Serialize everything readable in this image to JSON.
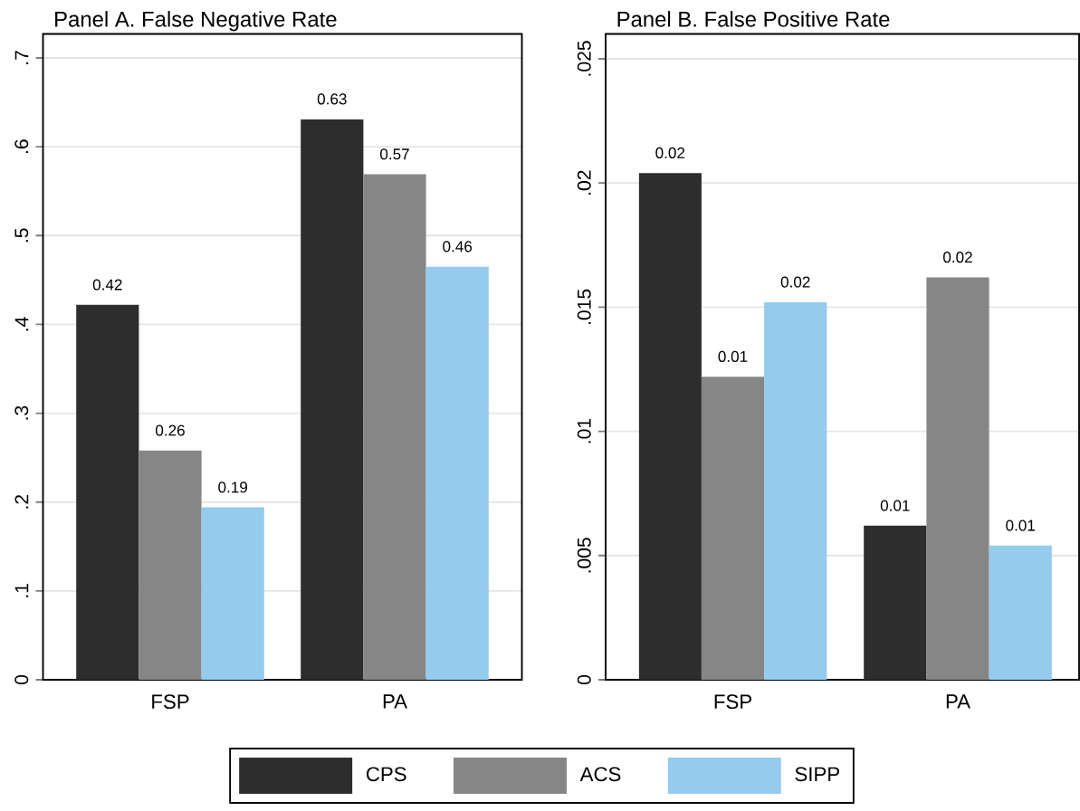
{
  "chart_data": [
    {
      "type": "bar",
      "title": "Panel A. False Negative Rate",
      "categories": [
        "FSP",
        "PA"
      ],
      "ylim": [
        0,
        0.727
      ],
      "yticks": [
        0,
        {
          "value": 0.1,
          "label": ".1"
        },
        {
          "value": 0.2,
          "label": ".2"
        },
        {
          "value": 0.3,
          "label": ".3"
        },
        {
          "value": 0.4,
          "label": ".4"
        },
        {
          "value": 0.5,
          "label": ".5"
        },
        {
          "value": 0.6,
          "label": ".6"
        },
        {
          "value": 0.7,
          "label": ".7"
        }
      ],
      "grid": "y",
      "legend": "bottom",
      "series": [
        {
          "name": "CPS",
          "color": "#2d2d2d",
          "values": [
            0.422,
            0.631
          ],
          "value_labels": [
            "0.42",
            "0.63"
          ]
        },
        {
          "name": "ACS",
          "color": "#868686",
          "values": [
            0.258,
            0.569
          ],
          "value_labels": [
            "0.26",
            "0.57"
          ]
        },
        {
          "name": "SIPP",
          "color": "#95cbed",
          "values": [
            0.194,
            0.465
          ],
          "value_labels": [
            "0.19",
            "0.46"
          ]
        }
      ]
    },
    {
      "type": "bar",
      "title": "Panel B. False Positive Rate",
      "categories": [
        "FSP",
        "PA"
      ],
      "ylim": [
        0,
        0.026
      ],
      "yticks": [
        0,
        {
          "value": 0.005,
          "label": ".005"
        },
        {
          "value": 0.01,
          "label": ".01"
        },
        {
          "value": 0.015,
          "label": ".015"
        },
        {
          "value": 0.02,
          "label": ".02"
        },
        {
          "value": 0.025,
          "label": ".025"
        }
      ],
      "grid": "y",
      "series": [
        {
          "color": "#2d2d2d",
          "values": [
            0.0204,
            0.0062
          ],
          "value_labels": [
            "0.02",
            "0.01"
          ]
        },
        {
          "color": "#868686",
          "values": [
            0.0122,
            0.0162
          ],
          "value_labels": [
            "0.01",
            "0.02"
          ]
        },
        {
          "color": "#95cbed",
          "values": [
            0.0152,
            0.0054
          ],
          "value_labels": [
            "0.02",
            "0.01"
          ]
        }
      ]
    }
  ]
}
